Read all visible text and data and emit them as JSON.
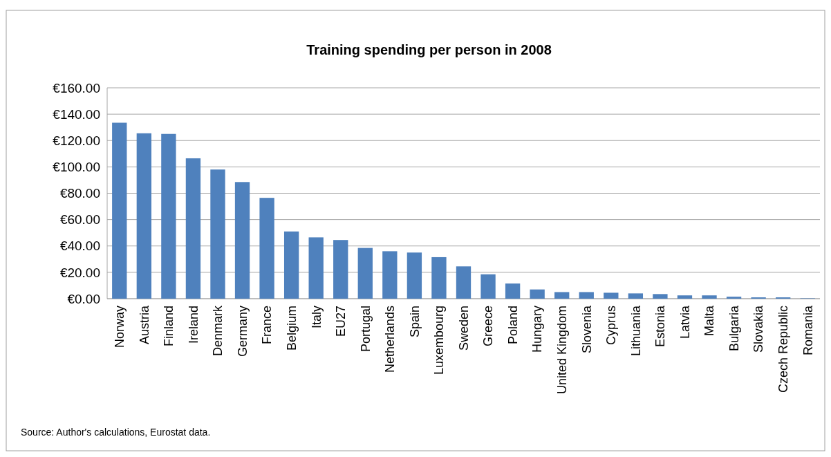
{
  "chart_data": {
    "type": "bar",
    "title": "Training spending per person in 2008",
    "categories": [
      "Norway",
      "Austria",
      "Finland",
      "Ireland",
      "Denmark",
      "Germany",
      "France",
      "Belgium",
      "Italy",
      "EU27",
      "Portugal",
      "Netherlands",
      "Spain",
      "Luxembourg",
      "Sweden",
      "Greece",
      "Poland",
      "Hungary",
      "United Kingdom",
      "Slovenia",
      "Cyprus",
      "Lithuania",
      "Estonia",
      "Latvia",
      "Malta",
      "Bulgaria",
      "Slovakia",
      "Czech Republic",
      "Romania"
    ],
    "values": [
      133.5,
      125.5,
      125,
      106.5,
      98,
      88.5,
      76.5,
      51,
      46.5,
      44.5,
      38.5,
      36,
      35,
      31.5,
      24.5,
      18.5,
      11.5,
      7,
      5,
      5,
      4.5,
      4,
      3.5,
      2.5,
      2.5,
      1.5,
      1,
      1,
      0.3
    ],
    "color": "#4f81bd",
    "ylim": [
      0,
      160
    ],
    "yticks": [
      {
        "value": 0,
        "label": "€0.00"
      },
      {
        "value": 20,
        "label": "€20.00"
      },
      {
        "value": 40,
        "label": "€40.00"
      },
      {
        "value": 60,
        "label": "€60.00"
      },
      {
        "value": 80,
        "label": "€80.00"
      },
      {
        "value": 100,
        "label": "€100.00"
      },
      {
        "value": 120,
        "label": "€120.00"
      },
      {
        "value": 140,
        "label": "€140.00"
      },
      {
        "value": 160,
        "label": "€160.00"
      }
    ],
    "grid": "y",
    "annotations": [
      "Source: Author's calculations, Eurostat data."
    ]
  }
}
